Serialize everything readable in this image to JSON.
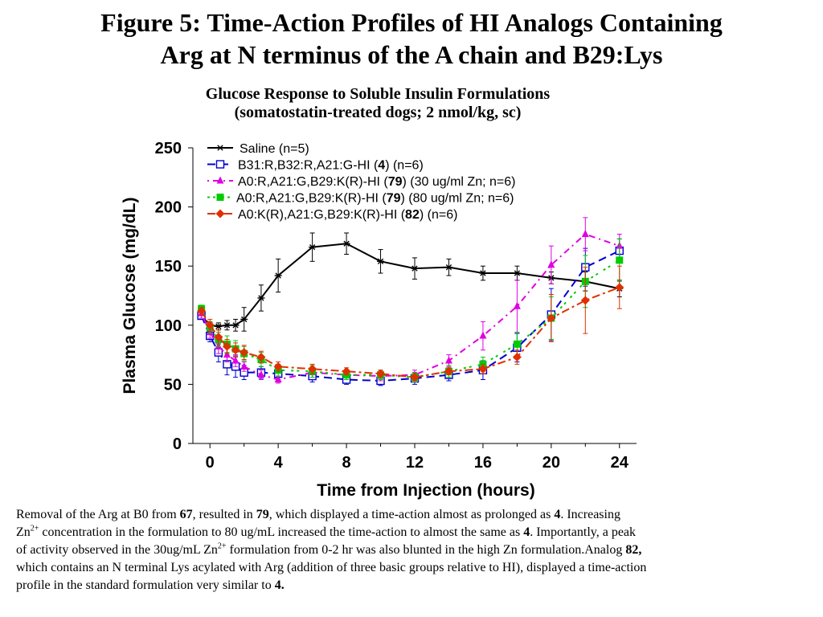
{
  "title_line1": "Figure 5: Time-Action Profiles of HI Analogs Containing",
  "title_line2": "Arg at N terminus of the A chain and B29:Lys",
  "subtitle_line1": "Glucose Response to Soluble Insulin Formulations",
  "subtitle_line2": "(somatostatin-treated dogs; 2 nmol/kg, sc)",
  "chart_data": {
    "type": "line",
    "xlabel": "Time from Injection (hours)",
    "ylabel": "Plasma Glucose (mg/dL)",
    "xlim": [
      -1,
      25
    ],
    "ylim": [
      0,
      250
    ],
    "xticks": [
      0,
      4,
      8,
      12,
      16,
      20,
      24
    ],
    "yticks": [
      0,
      50,
      100,
      150,
      200,
      250
    ],
    "legend_position": "top-left",
    "series": [
      {
        "name": "Saline (n=5)",
        "legend_parts": [
          {
            "t": "Saline (n=5)",
            "b": false
          }
        ],
        "color": "#000000",
        "dash": "",
        "marker": "star",
        "x": [
          -0.5,
          0,
          0.5,
          1,
          1.5,
          2,
          3,
          4,
          6,
          8,
          10,
          12,
          14,
          16,
          18,
          20,
          22,
          24
        ],
        "y": [
          108,
          100,
          99,
          100,
          100,
          105,
          123,
          142,
          166,
          169,
          154,
          148,
          149,
          144,
          144,
          140,
          137,
          131
        ],
        "err": [
          3,
          3,
          3,
          4,
          5,
          10,
          11,
          14,
          12,
          9,
          10,
          9,
          7,
          6,
          6,
          5,
          8,
          7
        ]
      },
      {
        "name": "B31:R,B32:R,A21:G-HI (4) (n=6)",
        "legend_parts": [
          {
            "t": "B31:R,B32:R,A21:G-HI (",
            "b": false
          },
          {
            "t": "4",
            "b": true
          },
          {
            "t": ") (n=6)",
            "b": false
          }
        ],
        "color": "#0000cc",
        "dash": "10,6",
        "marker": "square-open",
        "x": [
          -0.5,
          0,
          0.5,
          1,
          1.5,
          2,
          3,
          4,
          6,
          8,
          10,
          12,
          14,
          16,
          18,
          20,
          22,
          24
        ],
        "y": [
          108,
          91,
          77,
          67,
          65,
          60,
          60,
          59,
          57,
          54,
          53,
          55,
          58,
          62,
          81,
          109,
          149,
          163
        ],
        "err": [
          3,
          5,
          8,
          9,
          9,
          6,
          5,
          5,
          5,
          4,
          4,
          5,
          5,
          8,
          12,
          22,
          16,
          10
        ]
      },
      {
        "name": "A0:R,A21:G,B29:K(R)-HI (79) (30 ug/ml Zn; n=6)",
        "legend_parts": [
          {
            "t": "A0:R,A21:G,B29:K(R)-HI (",
            "b": false
          },
          {
            "t": "79",
            "b": true
          },
          {
            "t": ") (30 ug/ml Zn; n=6)",
            "b": false
          }
        ],
        "color": "#e000e0",
        "dash": "2,5,8,5",
        "marker": "triangle",
        "x": [
          -0.5,
          0,
          0.5,
          1,
          1.5,
          2,
          3,
          4,
          6,
          8,
          10,
          12,
          14,
          16,
          18,
          20,
          22,
          24
        ],
        "y": [
          110,
          94,
          82,
          75,
          70,
          65,
          58,
          54,
          60,
          58,
          57,
          58,
          70,
          91,
          116,
          151,
          177,
          167
        ],
        "err": [
          4,
          5,
          6,
          6,
          5,
          4,
          4,
          3,
          4,
          4,
          4,
          4,
          5,
          12,
          22,
          16,
          14,
          10
        ]
      },
      {
        "name": "A0:R,A21:G,B29:K(R)-HI (79) (80 ug/ml Zn; n=6)",
        "legend_parts": [
          {
            "t": "A0:R,A21:G,B29:K(R)-HI (",
            "b": false
          },
          {
            "t": "79",
            "b": true
          },
          {
            "t": ") (80 ug/ml Zn; n=6)",
            "b": false
          }
        ],
        "color": "#00cc00",
        "dash": "3,4,3,8",
        "marker": "square",
        "x": [
          -0.5,
          0,
          0.5,
          1,
          1.5,
          2,
          3,
          4,
          6,
          8,
          10,
          12,
          14,
          16,
          18,
          20,
          22,
          24
        ],
        "y": [
          114,
          98,
          88,
          84,
          80,
          76,
          71,
          62,
          61,
          58,
          58,
          56,
          61,
          67,
          84,
          106,
          137,
          155
        ],
        "err": [
          3,
          5,
          6,
          7,
          7,
          6,
          6,
          5,
          5,
          4,
          4,
          4,
          5,
          6,
          10,
          18,
          22,
          18
        ]
      },
      {
        "name": "A0:K(R),A21:G,B29:K(R)-HI (82) (n=6)",
        "legend_parts": [
          {
            "t": "A0:K(R),A21:G,B29:K(R)-HI (",
            "b": false
          },
          {
            "t": "82",
            "b": true
          },
          {
            "t": ") (n=6)",
            "b": false
          }
        ],
        "color": "#e03000",
        "dash": "10,4,3,4",
        "marker": "diamond",
        "x": [
          -0.5,
          0,
          0.5,
          1,
          1.5,
          2,
          3,
          4,
          6,
          8,
          10,
          12,
          14,
          16,
          18,
          20,
          22,
          24
        ],
        "y": [
          112,
          100,
          90,
          82,
          79,
          77,
          73,
          65,
          63,
          61,
          59,
          56,
          61,
          63,
          73,
          106,
          121,
          132
        ],
        "err": [
          3,
          5,
          6,
          6,
          6,
          6,
          5,
          4,
          4,
          3,
          3,
          3,
          3,
          4,
          6,
          20,
          28,
          18
        ]
      }
    ]
  },
  "caption": {
    "line1": [
      {
        "t": "Removal of the Arg at B0 from  ",
        "b": false
      },
      {
        "t": "67",
        "b": true
      },
      {
        "t": ", resulted in ",
        "b": false
      },
      {
        "t": "79",
        "b": true
      },
      {
        "t": ", which displayed a time-action almost as prolonged as ",
        "b": false
      },
      {
        "t": "4",
        "b": true
      },
      {
        "t": ".  Increasing",
        "b": false
      }
    ],
    "line2": [
      {
        "t": " Zn",
        "b": false
      },
      {
        "t": "2+",
        "sup": true
      },
      {
        "t": " concentration in the formulation to 80 ug/mL increased the time-action to almost the same as ",
        "b": false
      },
      {
        "t": "4",
        "b": true
      },
      {
        "t": ". Importantly, a  peak",
        "b": false
      }
    ],
    "line3": [
      {
        "t": "of activity observed in the 30ug/mL Zn",
        "b": false
      },
      {
        "t": "2+",
        "sup": true
      },
      {
        "t": " formulation from 0-2 hr was also blunted in the high Zn formulation.Analog ",
        "b": false
      },
      {
        "t": "82,",
        "b": true
      }
    ],
    "line4": [
      {
        "t": "which contains an N terminal Lys acylated with Arg (addition of three basic groups relative to HI), displayed a time-action",
        "b": false
      }
    ],
    "line5": [
      {
        "t": "profile in the standard formulation very similar to ",
        "b": false
      },
      {
        "t": "4.",
        "b": true
      }
    ]
  }
}
